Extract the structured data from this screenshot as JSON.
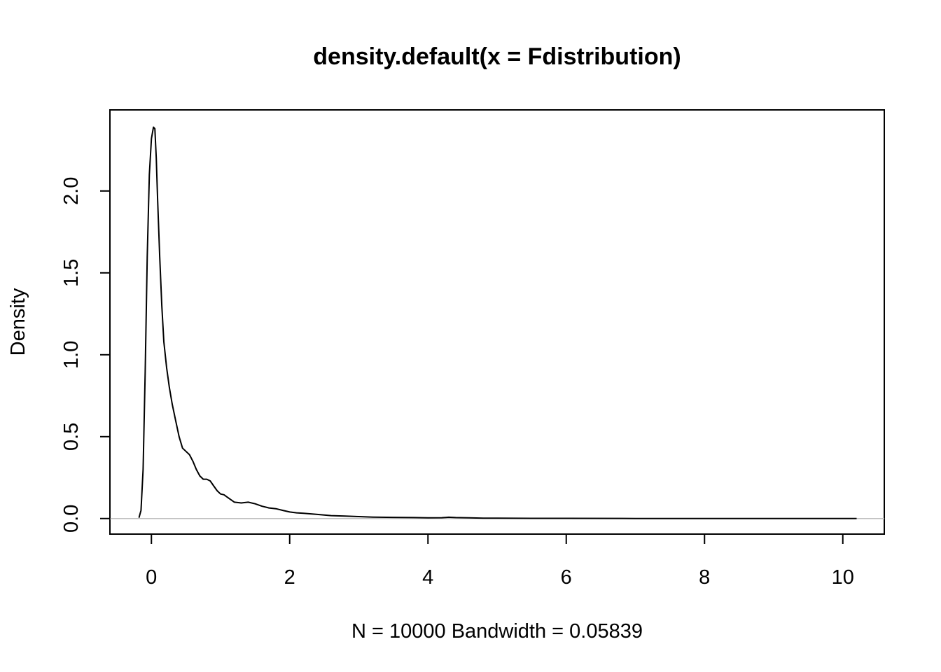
{
  "chart_data": {
    "type": "line",
    "title": "density.default(x = Fdistribution)",
    "xlabel": "N = 10000   Bandwidth = 0.05839",
    "ylabel": "Density",
    "xlim": [
      -0.6,
      10.6
    ],
    "ylim": [
      -0.095,
      2.495
    ],
    "x_ticks": [
      0,
      2,
      4,
      6,
      8,
      10
    ],
    "x_tick_labels": [
      "0",
      "2",
      "4",
      "6",
      "8",
      "10"
    ],
    "y_ticks": [
      0.0,
      0.5,
      1.0,
      1.5,
      2.0
    ],
    "y_tick_labels": [
      "0.0",
      "0.5",
      "1.0",
      "1.5",
      "2.0"
    ],
    "zero_line": true,
    "grid": false,
    "series": [
      {
        "x": [
          -0.18,
          -0.15,
          -0.12,
          -0.09,
          -0.06,
          -0.03,
          0.0,
          0.03,
          0.05,
          0.07,
          0.09,
          0.12,
          0.15,
          0.18,
          0.22,
          0.26,
          0.3,
          0.35,
          0.4,
          0.45,
          0.5,
          0.55,
          0.6,
          0.65,
          0.7,
          0.75,
          0.8,
          0.85,
          0.9,
          0.95,
          1.0,
          1.05,
          1.1,
          1.2,
          1.3,
          1.4,
          1.5,
          1.6,
          1.7,
          1.8,
          1.9,
          2.0,
          2.1,
          2.2,
          2.4,
          2.6,
          2.8,
          3.0,
          3.2,
          3.5,
          3.8,
          4.0,
          4.2,
          4.3,
          4.4,
          4.6,
          4.8,
          5.0,
          5.5,
          6.0,
          7.0,
          8.0,
          9.0,
          10.0,
          10.2
        ],
        "y": [
          0.005,
          0.05,
          0.3,
          0.9,
          1.6,
          2.1,
          2.32,
          2.39,
          2.38,
          2.2,
          1.95,
          1.6,
          1.3,
          1.08,
          0.92,
          0.8,
          0.7,
          0.6,
          0.5,
          0.43,
          0.41,
          0.39,
          0.35,
          0.3,
          0.26,
          0.24,
          0.24,
          0.23,
          0.2,
          0.17,
          0.15,
          0.145,
          0.13,
          0.1,
          0.095,
          0.1,
          0.09,
          0.075,
          0.065,
          0.06,
          0.05,
          0.04,
          0.035,
          0.032,
          0.025,
          0.018,
          0.015,
          0.012,
          0.009,
          0.007,
          0.006,
          0.004,
          0.005,
          0.008,
          0.006,
          0.004,
          0.002,
          0.002,
          0.001,
          0.001,
          0.0005,
          0.0003,
          0.0002,
          0.0002,
          0.0001
        ]
      }
    ]
  }
}
